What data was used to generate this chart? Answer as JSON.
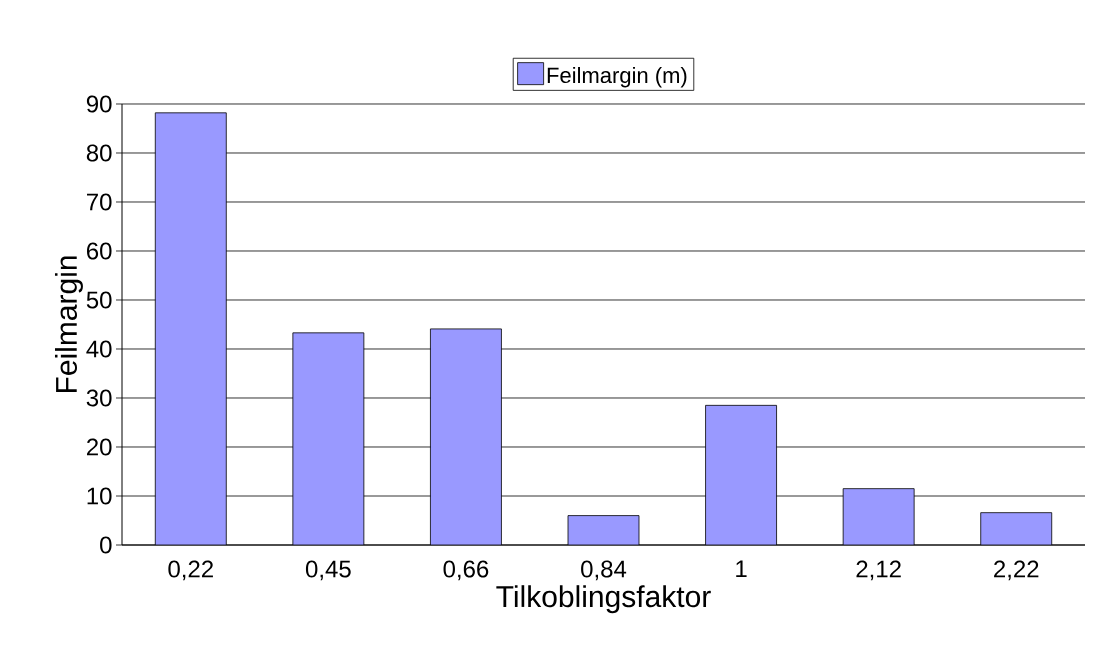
{
  "chart_data": {
    "type": "bar",
    "categories": [
      "0,22",
      "0,45",
      "0,66",
      "0,84",
      "1",
      "2,12",
      "2,22"
    ],
    "series": [
      {
        "name": "Feilmargin (m)",
        "color": "#9999ff",
        "values": [
          88.2,
          43.3,
          44.1,
          6.0,
          28.5,
          11.5,
          6.6
        ]
      }
    ],
    "xlabel": "Tilkoblingsfaktor",
    "ylabel": "Feilmargin",
    "ylim": [
      0,
      90
    ],
    "yticks": [
      0,
      10,
      20,
      30,
      40,
      50,
      60,
      70,
      80,
      90
    ],
    "grid": "y",
    "legend": "top"
  }
}
